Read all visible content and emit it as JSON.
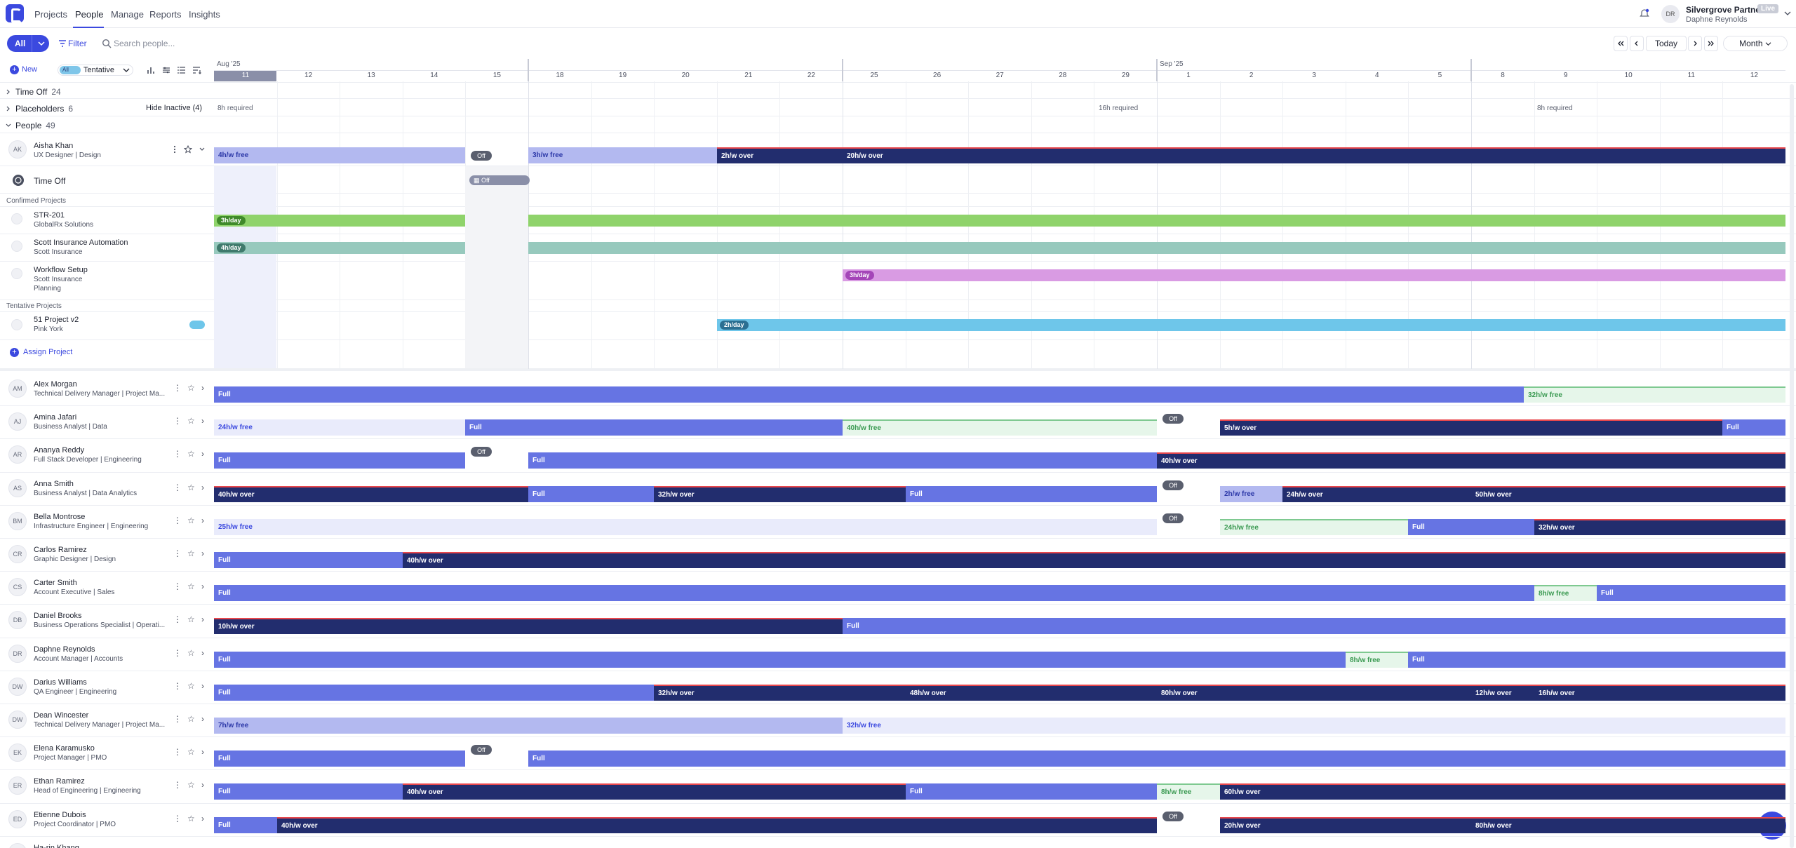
{
  "nav": {
    "tabs": [
      "Projects",
      "People",
      "Manage",
      "Reports",
      "Insights"
    ],
    "active": "People"
  },
  "account": {
    "org": "Silvergrove Partners",
    "badge": "Live",
    "user": "Daphne Reynolds",
    "initials": "DR"
  },
  "toolbar": {
    "all_label": "All",
    "filter_label": "Filter",
    "search_placeholder": "Search people...",
    "today_label": "Today",
    "view_label": "Month"
  },
  "grid_toolbar": {
    "new_label": "New",
    "toggle_pill": "All",
    "toggle_label": "Tentative"
  },
  "timeline": {
    "months": [
      {
        "label": "Aug '25",
        "day": "11"
      },
      {
        "label": "Sep '25",
        "day": "1"
      }
    ],
    "days": [
      "11",
      "12",
      "13",
      "14",
      "15",
      "18",
      "19",
      "20",
      "21",
      "22",
      "25",
      "26",
      "27",
      "28",
      "29",
      "1",
      "2",
      "3",
      "4",
      "5",
      "8",
      "9",
      "10",
      "11",
      "12"
    ]
  },
  "sections": {
    "time_off": {
      "label": "Time Off",
      "count": "24"
    },
    "placeholders": {
      "label": "Placeholders",
      "count": "6",
      "hide_inactive": "Hide Inactive (4)",
      "req": [
        "8h required",
        "16h required",
        "8h required"
      ]
    },
    "people": {
      "label": "People",
      "count": "49"
    }
  },
  "expanded": {
    "name": "Aisha Khan",
    "role": "UX Designer | Design",
    "initials": "AK",
    "bars": [
      "4h/w free",
      "Off",
      "3h/w free",
      "2h/w over",
      "20h/w over"
    ],
    "time_off_label": "Time Off",
    "off_label": "Off",
    "confirmed_label": "Confirmed Projects",
    "projects": [
      {
        "name": "STR-201",
        "client": "GlobalRx Solutions",
        "tag": "3h/day",
        "color": "#8fd36b",
        "tagcolor": "#3f8a2a"
      },
      {
        "name": "Scott Insurance Automation",
        "client": "Scott Insurance",
        "tag": "4h/day",
        "color": "#97c9bd",
        "tagcolor": "#3f7a6c"
      },
      {
        "name": "Workflow Setup",
        "client": "Scott Insurance",
        "sub": "Planning",
        "tag": "3h/day",
        "color": "#d99be3",
        "tagcolor": "#a445b8"
      }
    ],
    "tentative_label": "Tentative Projects",
    "tentative": {
      "name": "51 Project v2",
      "client": "Pink York",
      "tag": "2h/day",
      "color": "#6ec6ea",
      "tagcolor": "#2b6f92"
    },
    "assign_label": "Assign Project"
  },
  "people": [
    {
      "initials": "AM",
      "name": "Alex Morgan",
      "role": "Technical Delivery Manager | Project Ma...",
      "bars": [
        [
          "full",
          0,
          1867,
          "Full"
        ],
        [
          "gfree",
          1867,
          2240,
          "32h/w free"
        ]
      ]
    },
    {
      "initials": "AJ",
      "name": "Amina Jafari",
      "role": "Business Analyst | Data",
      "bars": [
        [
          "free",
          0,
          358,
          "24h/w free"
        ],
        [
          "full",
          358,
          896,
          "Full"
        ],
        [
          "gfree",
          896,
          1344,
          "40h/w free"
        ],
        [
          "off",
          1344,
          1434,
          "Off"
        ],
        [
          "over",
          1434,
          2150,
          "5h/w over"
        ],
        [
          "full",
          2150,
          2240,
          "Full"
        ]
      ]
    },
    {
      "initials": "AR",
      "name": "Ananya Reddy",
      "role": "Full Stack Developer | Engineering",
      "bars": [
        [
          "full",
          0,
          358,
          "Full"
        ],
        [
          "off",
          358,
          448,
          "Off"
        ],
        [
          "full",
          448,
          1344,
          "Full"
        ],
        [
          "over",
          1344,
          2240,
          "40h/w over"
        ]
      ]
    },
    {
      "initials": "AS",
      "name": "Anna Smith",
      "role": "Business Analyst | Data Analytics",
      "bars": [
        [
          "over",
          0,
          448,
          "40h/w over"
        ],
        [
          "full",
          448,
          627,
          "Full"
        ],
        [
          "over",
          627,
          986,
          "32h/w over"
        ],
        [
          "full",
          986,
          1344,
          "Full"
        ],
        [
          "off",
          1344,
          1434,
          "Off"
        ],
        [
          "free2",
          1434,
          1523,
          "2h/w free"
        ],
        [
          "over",
          1523,
          1792,
          "24h/w over"
        ],
        [
          "over",
          1792,
          2240,
          "50h/w over"
        ]
      ]
    },
    {
      "initials": "BM",
      "name": "Bella Montrose",
      "role": "Infrastructure Engineer | Engineering",
      "bars": [
        [
          "free",
          0,
          1344,
          "25h/w free"
        ],
        [
          "off",
          1344,
          1434,
          "Off"
        ],
        [
          "gfree",
          1434,
          1702,
          "24h/w free"
        ],
        [
          "full",
          1702,
          1882,
          "Full"
        ],
        [
          "over",
          1882,
          2240,
          "32h/w over"
        ]
      ]
    },
    {
      "initials": "CR",
      "name": "Carlos Ramirez",
      "role": "Graphic Designer | Design",
      "bars": [
        [
          "full",
          0,
          269,
          "Full"
        ],
        [
          "over",
          269,
          2240,
          "40h/w over"
        ]
      ]
    },
    {
      "initials": "CS",
      "name": "Carter Smith",
      "role": "Account Executive | Sales",
      "bars": [
        [
          "full",
          0,
          1882,
          "Full"
        ],
        [
          "gfree",
          1882,
          1971,
          "8h/w free"
        ],
        [
          "full",
          1971,
          2240,
          "Full"
        ]
      ]
    },
    {
      "initials": "DB",
      "name": "Daniel Brooks",
      "role": "Business Operations Specialist | Operati...",
      "bars": [
        [
          "over",
          0,
          896,
          "10h/w over"
        ],
        [
          "full",
          896,
          2240,
          "Full"
        ]
      ]
    },
    {
      "initials": "DR",
      "name": "Daphne Reynolds",
      "role": "Account Manager | Accounts",
      "bars": [
        [
          "full",
          0,
          1613,
          "Full"
        ],
        [
          "gfree",
          1613,
          1702,
          "8h/w free"
        ],
        [
          "full",
          1702,
          2240,
          "Full"
        ]
      ]
    },
    {
      "initials": "DW",
      "name": "Darius Williams",
      "role": "QA Engineer | Engineering",
      "bars": [
        [
          "full",
          0,
          627,
          "Full"
        ],
        [
          "over",
          627,
          986,
          "32h/w over"
        ],
        [
          "over",
          986,
          1344,
          "48h/w over"
        ],
        [
          "over",
          1344,
          1792,
          "80h/w over"
        ],
        [
          "over",
          1792,
          1882,
          "12h/w over"
        ],
        [
          "over",
          1882,
          2240,
          "16h/w over"
        ]
      ]
    },
    {
      "initials": "DW",
      "name": "Dean Wincester",
      "role": "Technical Delivery Manager | Project Ma...",
      "bars": [
        [
          "free2",
          0,
          896,
          "7h/w free"
        ],
        [
          "free",
          896,
          2240,
          "32h/w free"
        ]
      ]
    },
    {
      "initials": "EK",
      "name": "Elena Karamusko",
      "role": "Project Manager | PMO",
      "bars": [
        [
          "full",
          0,
          358,
          "Full"
        ],
        [
          "off",
          358,
          448,
          "Off"
        ],
        [
          "full",
          448,
          2240,
          "Full"
        ]
      ]
    },
    {
      "initials": "ER",
      "name": "Ethan Ramirez",
      "role": "Head of Engineering | Engineering",
      "bars": [
        [
          "full",
          0,
          269,
          "Full"
        ],
        [
          "over",
          269,
          986,
          "40h/w over"
        ],
        [
          "full",
          986,
          1344,
          "Full"
        ],
        [
          "gfree",
          1344,
          1434,
          "8h/w free"
        ],
        [
          "over",
          1434,
          2240,
          "60h/w over"
        ]
      ]
    },
    {
      "initials": "ED",
      "name": "Etienne Dubois",
      "role": "Project Coordinator | PMO",
      "bars": [
        [
          "full",
          0,
          90,
          "Full"
        ],
        [
          "over",
          90,
          1344,
          "40h/w over"
        ],
        [
          "off",
          1344,
          1434,
          "Off"
        ],
        [
          "over",
          1434,
          1792,
          "20h/w over"
        ],
        [
          "over",
          1792,
          2240,
          "80h/w over"
        ]
      ]
    },
    {
      "initials": "HK",
      "name": "Ha-rin Khang",
      "role": "",
      "bars": []
    }
  ]
}
